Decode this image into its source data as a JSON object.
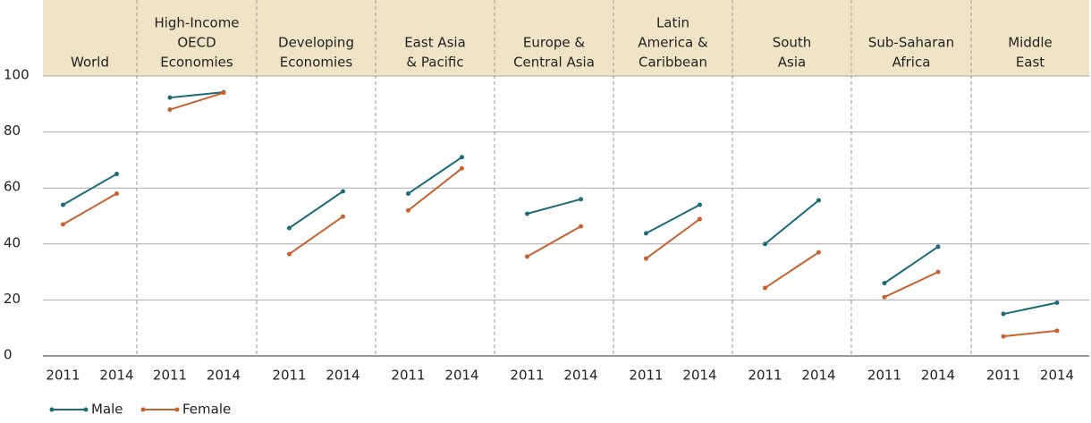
{
  "chart_data": {
    "type": "line",
    "x": [
      "2011",
      "2014"
    ],
    "ylim": [
      0,
      100
    ],
    "yticks": [
      0,
      20,
      40,
      60,
      80,
      100
    ],
    "grid": true,
    "series": [
      {
        "name": "Male",
        "color": "#1b6b7b"
      },
      {
        "name": "Female",
        "color": "#c9612f"
      }
    ],
    "panels": [
      {
        "title": [
          "World"
        ],
        "series": [
          {
            "values": [
              54,
              65
            ]
          },
          {
            "values": [
              47,
              58
            ]
          }
        ]
      },
      {
        "title": [
          "High-Income",
          "OECD",
          "Economies"
        ],
        "series": [
          {
            "values": [
              92.3,
              94.2
            ]
          },
          {
            "values": [
              88,
              94
            ]
          }
        ]
      },
      {
        "title": [
          "Developing",
          "Economies"
        ],
        "series": [
          {
            "values": [
              45.7,
              58.8
            ]
          },
          {
            "values": [
              36.4,
              49.8
            ]
          }
        ]
      },
      {
        "title": [
          "East Asia",
          "& Pacific"
        ],
        "series": [
          {
            "values": [
              58,
              71
            ]
          },
          {
            "values": [
              52,
              67
            ]
          }
        ]
      },
      {
        "title": [
          "Europe &",
          "Central Asia"
        ],
        "series": [
          {
            "values": [
              50.8,
              56
            ]
          },
          {
            "values": [
              35.5,
              46.3
            ]
          }
        ]
      },
      {
        "title": [
          "Latin",
          "America &",
          "Caribbean"
        ],
        "series": [
          {
            "values": [
              43.8,
              54
            ]
          },
          {
            "values": [
              34.8,
              48.9
            ]
          }
        ]
      },
      {
        "title": [
          "South",
          "Asia"
        ],
        "series": [
          {
            "values": [
              40,
              55.6
            ]
          },
          {
            "values": [
              24.3,
              37
            ]
          }
        ]
      },
      {
        "title": [
          "Sub-Saharan",
          "Africa"
        ],
        "series": [
          {
            "values": [
              26,
              39
            ]
          },
          {
            "values": [
              21,
              30
            ]
          }
        ]
      },
      {
        "title": [
          "Middle",
          "East"
        ],
        "series": [
          {
            "values": [
              15,
              19
            ]
          },
          {
            "values": [
              7,
              9
            ]
          }
        ]
      }
    ]
  }
}
